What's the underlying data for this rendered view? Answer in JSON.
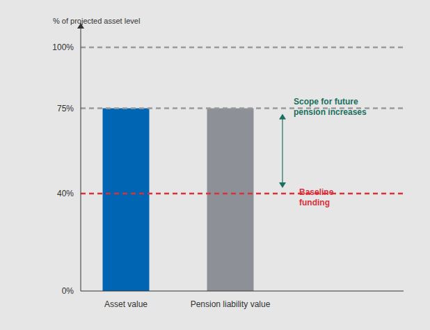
{
  "chart_data": {
    "type": "bar",
    "y_label": "% of projected asset level",
    "categories": [
      "Asset value",
      "Pension liability value"
    ],
    "values": [
      75,
      75
    ],
    "colors": [
      "#0066b3",
      "#8d9197"
    ],
    "ylim": [
      0,
      110
    ],
    "yticks": [
      {
        "value": 0,
        "label": "0%"
      },
      {
        "value": 40,
        "label": "40%"
      },
      {
        "value": 75,
        "label": "75%"
      },
      {
        "value": 100,
        "label": "100%"
      }
    ],
    "grid": false,
    "reference_lines": [
      {
        "value": 100,
        "color": "#9a9a9a"
      },
      {
        "value": 75,
        "color": "#9a9a9a"
      },
      {
        "value": 40,
        "color": "#d9303b",
        "label": "Baseline funding"
      }
    ],
    "annotations": [
      {
        "text": "Scope for future pension increases",
        "from": 75,
        "to": 40,
        "color": "#1a6f5e"
      }
    ]
  }
}
